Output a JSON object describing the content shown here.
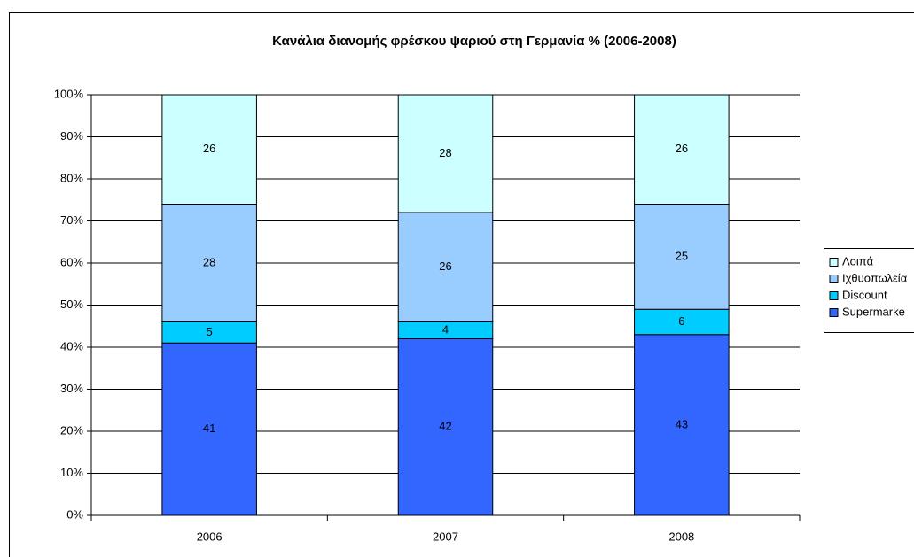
{
  "chart_data": {
    "type": "stacked_bar",
    "title": "Κανάλια διανομής φρέσκου ψαριού στη Γερμανία % (2006-2008)",
    "categories": [
      "2006",
      "2007",
      "2008"
    ],
    "series": [
      {
        "name": "Supermarke",
        "color": "#3366ff",
        "values": [
          41,
          42,
          43
        ]
      },
      {
        "name": "Discount",
        "color": "#00ccff",
        "values": [
          5,
          4,
          6
        ]
      },
      {
        "name": "Ιχθυοπωλεία",
        "color": "#99ccff",
        "values": [
          28,
          26,
          25
        ]
      },
      {
        "name": "Λοιπά",
        "color": "#ccffff",
        "values": [
          26,
          28,
          26
        ]
      }
    ],
    "ylim": [
      0,
      100
    ],
    "yticks": [
      {
        "value": 0,
        "label": "0%"
      },
      {
        "value": 10,
        "label": "10%"
      },
      {
        "value": 20,
        "label": "20%"
      },
      {
        "value": 30,
        "label": "30%"
      },
      {
        "value": 40,
        "label": "40%"
      },
      {
        "value": 50,
        "label": "50%"
      },
      {
        "value": 60,
        "label": "60%"
      },
      {
        "value": 70,
        "label": "70%"
      },
      {
        "value": 80,
        "label": "80%"
      },
      {
        "value": 90,
        "label": "90%"
      },
      {
        "value": 100,
        "label": "100%"
      }
    ],
    "grid": true,
    "legend": "right"
  }
}
